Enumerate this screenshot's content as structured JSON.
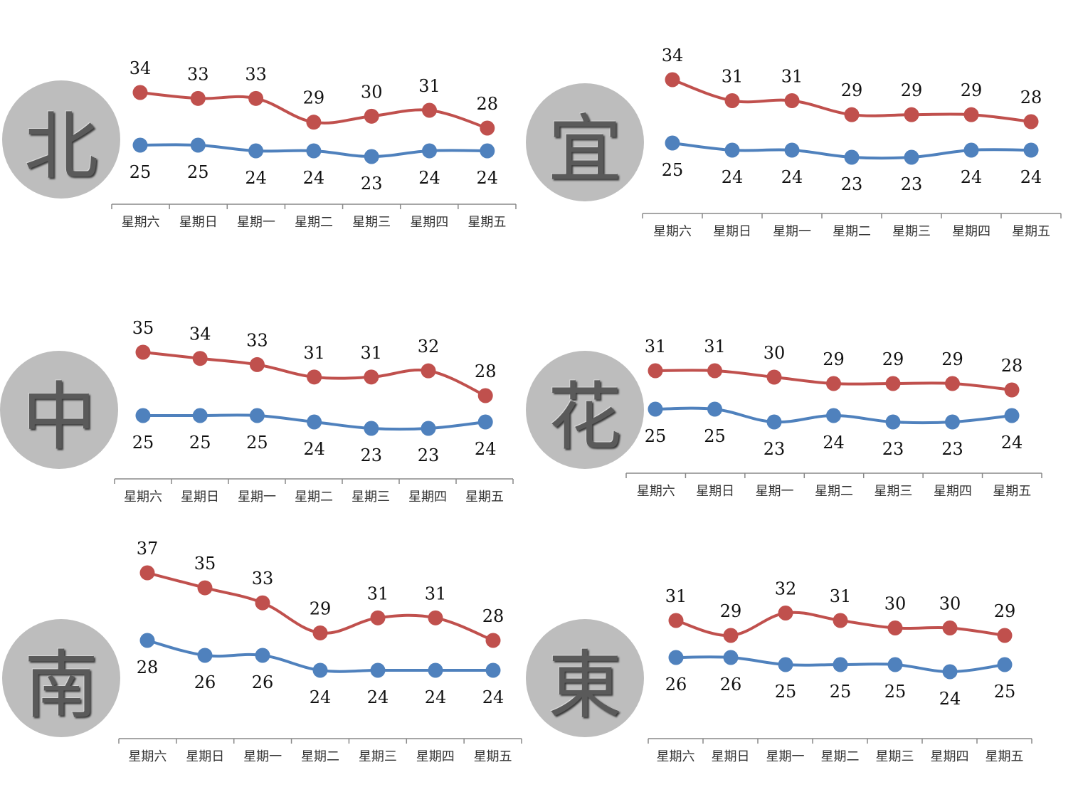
{
  "colors": {
    "high": "#c0504d",
    "low": "#4f81bd",
    "axis": "#888888",
    "circle": "#bdbdbd"
  },
  "chart_data": [
    {
      "type": "line",
      "region": "北",
      "categories": [
        "星期六",
        "星期日",
        "星期一",
        "星期二",
        "星期三",
        "星期四",
        "星期五"
      ],
      "series": [
        {
          "values": [
            34,
            33,
            33,
            29,
            30,
            31,
            28
          ]
        },
        {
          "values": [
            25,
            25,
            24,
            24,
            23,
            24,
            24
          ]
        }
      ]
    },
    {
      "type": "line",
      "region": "宜",
      "categories": [
        "星期六",
        "星期日",
        "星期一",
        "星期二",
        "星期三",
        "星期四",
        "星期五"
      ],
      "series": [
        {
          "values": [
            34,
            31,
            31,
            29,
            29,
            29,
            28
          ]
        },
        {
          "values": [
            25,
            24,
            24,
            23,
            23,
            24,
            24
          ]
        }
      ]
    },
    {
      "type": "line",
      "region": "中",
      "categories": [
        "星期六",
        "星期日",
        "星期一",
        "星期二",
        "星期三",
        "星期四",
        "星期五"
      ],
      "series": [
        {
          "values": [
            35,
            34,
            33,
            31,
            31,
            32,
            28
          ]
        },
        {
          "values": [
            25,
            25,
            25,
            24,
            23,
            23,
            24
          ]
        }
      ]
    },
    {
      "type": "line",
      "region": "花",
      "categories": [
        "星期六",
        "星期日",
        "星期一",
        "星期二",
        "星期三",
        "星期四",
        "星期五"
      ],
      "series": [
        {
          "values": [
            31,
            31,
            30,
            29,
            29,
            29,
            28
          ]
        },
        {
          "values": [
            25,
            25,
            23,
            24,
            23,
            23,
            24
          ]
        }
      ]
    },
    {
      "type": "line",
      "region": "南",
      "categories": [
        "星期六",
        "星期日",
        "星期一",
        "星期二",
        "星期三",
        "星期四",
        "星期五"
      ],
      "series": [
        {
          "values": [
            37,
            35,
            33,
            29,
            31,
            31,
            28
          ]
        },
        {
          "values": [
            28,
            26,
            26,
            24,
            24,
            24,
            24
          ]
        }
      ]
    },
    {
      "type": "line",
      "region": "東",
      "categories": [
        "星期六",
        "星期日",
        "星期一",
        "星期二",
        "星期三",
        "星期四",
        "星期五"
      ],
      "series": [
        {
          "values": [
            31,
            29,
            32,
            31,
            30,
            30,
            29
          ]
        },
        {
          "values": [
            26,
            26,
            25,
            25,
            25,
            24,
            25
          ]
        }
      ]
    }
  ]
}
